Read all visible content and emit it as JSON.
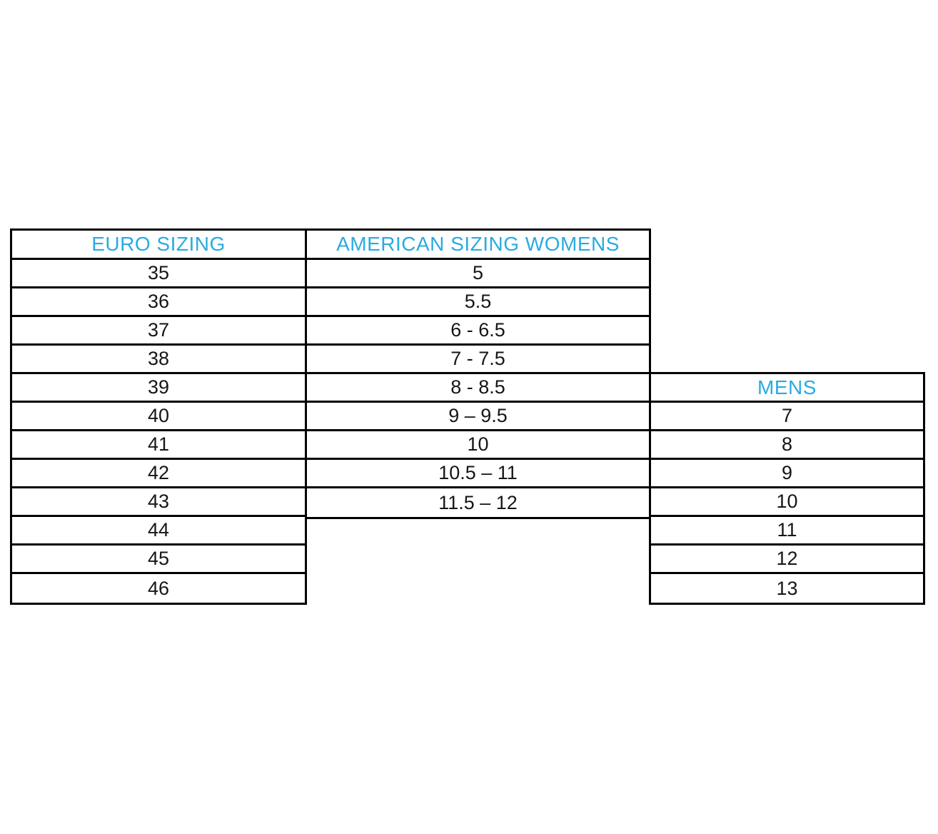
{
  "table": {
    "euro": {
      "header": "EURO SIZING",
      "values": [
        "35",
        "36",
        "37",
        "38",
        "39",
        "40",
        "41",
        "42",
        "43",
        "44",
        "45",
        "46"
      ]
    },
    "womens": {
      "header": "AMERICAN SIZING WOMENS",
      "values": [
        "5",
        "5.5",
        "6 - 6.5",
        "7 - 7.5",
        "8 - 8.5",
        "9 – 9.5",
        "10",
        "10.5 – 11",
        "11.5 – 12"
      ]
    },
    "mens": {
      "header": "MENS",
      "values": [
        "7",
        "8",
        "9",
        "10",
        "11",
        "12",
        "13"
      ]
    },
    "colors": {
      "header_text": "#29ABE2",
      "body_text": "#161616",
      "border": "#000000",
      "background": "#ffffff"
    }
  },
  "chart_data": {
    "type": "table",
    "title": "Shoe size conversion chart",
    "columns": [
      "EURO SIZING",
      "AMERICAN SIZING WOMENS",
      "MENS"
    ],
    "rows": [
      [
        "35",
        "5",
        ""
      ],
      [
        "36",
        "5.5",
        ""
      ],
      [
        "37",
        "6 - 6.5",
        ""
      ],
      [
        "38",
        "7 - 7.5",
        ""
      ],
      [
        "39",
        "8 - 8.5",
        "MENS (header row)"
      ],
      [
        "40",
        "9 – 9.5",
        "7"
      ],
      [
        "41",
        "10",
        "8"
      ],
      [
        "42",
        "10.5 – 11",
        "9"
      ],
      [
        "43",
        "11.5 – 12",
        "10"
      ],
      [
        "44",
        "",
        "11"
      ],
      [
        "45",
        "",
        "12"
      ],
      [
        "46",
        "",
        "13"
      ]
    ],
    "layout_hints": {
      "womens_column_ends_at_euro": "43",
      "mens_column_starts_at_euro": "39",
      "grid": "on",
      "header_text_color": "#29ABE2"
    }
  }
}
